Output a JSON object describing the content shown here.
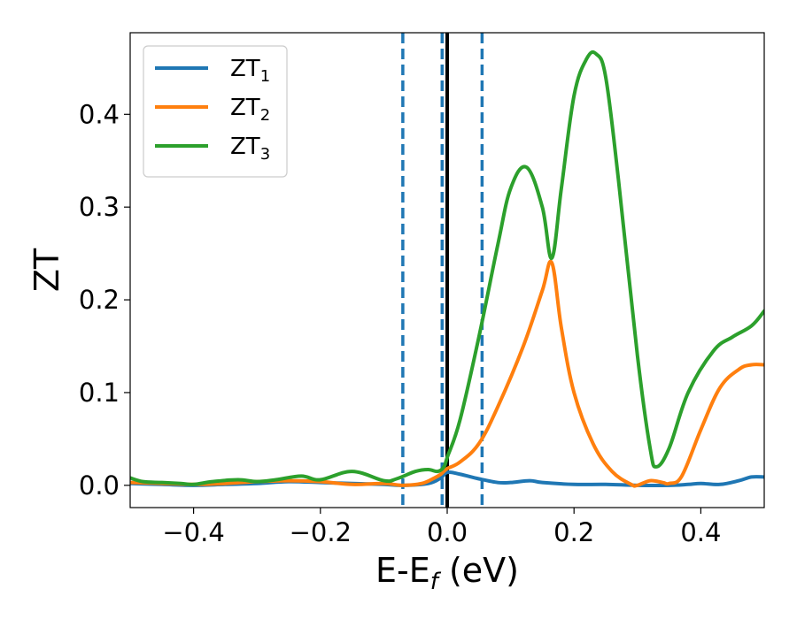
{
  "chart_data": {
    "type": "line",
    "title": "",
    "xlabel": "E-E",
    "xlabel_sub": "f",
    "xlabel_unit": " (eV)",
    "ylabel": "ZT",
    "xlim": [
      -0.5,
      0.5
    ],
    "ylim": [
      -0.024,
      0.488
    ],
    "xticks": [
      -0.4,
      -0.2,
      0.0,
      0.2,
      0.4
    ],
    "xtick_labels": [
      "−0.4",
      "−0.2",
      "0.0",
      "0.2",
      "0.4"
    ],
    "yticks": [
      0.0,
      0.1,
      0.2,
      0.3,
      0.4
    ],
    "ytick_labels": [
      "0.0",
      "0.1",
      "0.2",
      "0.3",
      "0.4"
    ],
    "grid": false,
    "legend_position": "top-left",
    "vlines": [
      {
        "x": -0.07,
        "style": "dashed",
        "color": "#1f77b4"
      },
      {
        "x": -0.008,
        "style": "dashed",
        "color": "#1f77b4"
      },
      {
        "x": 0.055,
        "style": "dashed",
        "color": "#1f77b4"
      },
      {
        "x": 0.0,
        "style": "solid",
        "color": "#000000"
      }
    ],
    "series": [
      {
        "name": "ZT",
        "name_sub": "1",
        "color": "#1f77b4",
        "x": [
          -0.5,
          -0.45,
          -0.4,
          -0.35,
          -0.3,
          -0.25,
          -0.2,
          -0.15,
          -0.1,
          -0.07,
          -0.03,
          -0.01,
          0.0,
          0.02,
          0.05,
          0.08,
          0.1,
          0.13,
          0.15,
          0.2,
          0.25,
          0.3,
          0.35,
          0.38,
          0.4,
          0.43,
          0.46,
          0.48,
          0.5
        ],
        "y": [
          0.002,
          0.001,
          0.0,
          0.001,
          0.002,
          0.004,
          0.003,
          0.002,
          0.001,
          0.0,
          0.002,
          0.008,
          0.014,
          0.012,
          0.007,
          0.003,
          0.003,
          0.005,
          0.003,
          0.001,
          0.001,
          0.0,
          0.0,
          0.001,
          0.002,
          0.001,
          0.005,
          0.009,
          0.009
        ]
      },
      {
        "name": "ZT",
        "name_sub": "2",
        "color": "#ff7f0e",
        "x": [
          -0.5,
          -0.45,
          -0.4,
          -0.35,
          -0.3,
          -0.25,
          -0.2,
          -0.15,
          -0.1,
          -0.07,
          -0.04,
          -0.02,
          -0.01,
          0.0,
          0.02,
          0.05,
          0.08,
          0.12,
          0.15,
          0.165,
          0.18,
          0.2,
          0.23,
          0.26,
          0.29,
          0.3,
          0.32,
          0.34,
          0.35,
          0.37,
          0.4,
          0.43,
          0.46,
          0.48,
          0.5
        ],
        "y": [
          0.003,
          0.002,
          0.001,
          0.002,
          0.004,
          0.005,
          0.004,
          0.001,
          0.002,
          0.0,
          0.002,
          0.008,
          0.012,
          0.018,
          0.025,
          0.045,
          0.085,
          0.15,
          0.21,
          0.24,
          0.17,
          0.1,
          0.045,
          0.015,
          0.001,
          0.0,
          0.005,
          0.003,
          0.002,
          0.01,
          0.06,
          0.105,
          0.125,
          0.13,
          0.13
        ]
      },
      {
        "name": "ZT",
        "name_sub": "3",
        "color": "#2ca02c",
        "x": [
          -0.5,
          -0.48,
          -0.45,
          -0.42,
          -0.4,
          -0.37,
          -0.33,
          -0.3,
          -0.27,
          -0.23,
          -0.2,
          -0.15,
          -0.1,
          -0.08,
          -0.05,
          -0.03,
          -0.015,
          -0.005,
          0.0,
          0.02,
          0.05,
          0.08,
          0.1,
          0.125,
          0.15,
          0.165,
          0.18,
          0.2,
          0.22,
          0.235,
          0.25,
          0.27,
          0.3,
          0.32,
          0.33,
          0.35,
          0.38,
          0.42,
          0.45,
          0.48,
          0.5
        ],
        "y": [
          0.008,
          0.004,
          0.003,
          0.002,
          0.001,
          0.004,
          0.006,
          0.004,
          0.006,
          0.01,
          0.006,
          0.015,
          0.005,
          0.007,
          0.015,
          0.017,
          0.015,
          0.02,
          0.03,
          0.07,
          0.16,
          0.26,
          0.32,
          0.343,
          0.3,
          0.245,
          0.32,
          0.42,
          0.46,
          0.465,
          0.44,
          0.33,
          0.14,
          0.04,
          0.02,
          0.04,
          0.1,
          0.145,
          0.16,
          0.172,
          0.188
        ]
      }
    ]
  }
}
